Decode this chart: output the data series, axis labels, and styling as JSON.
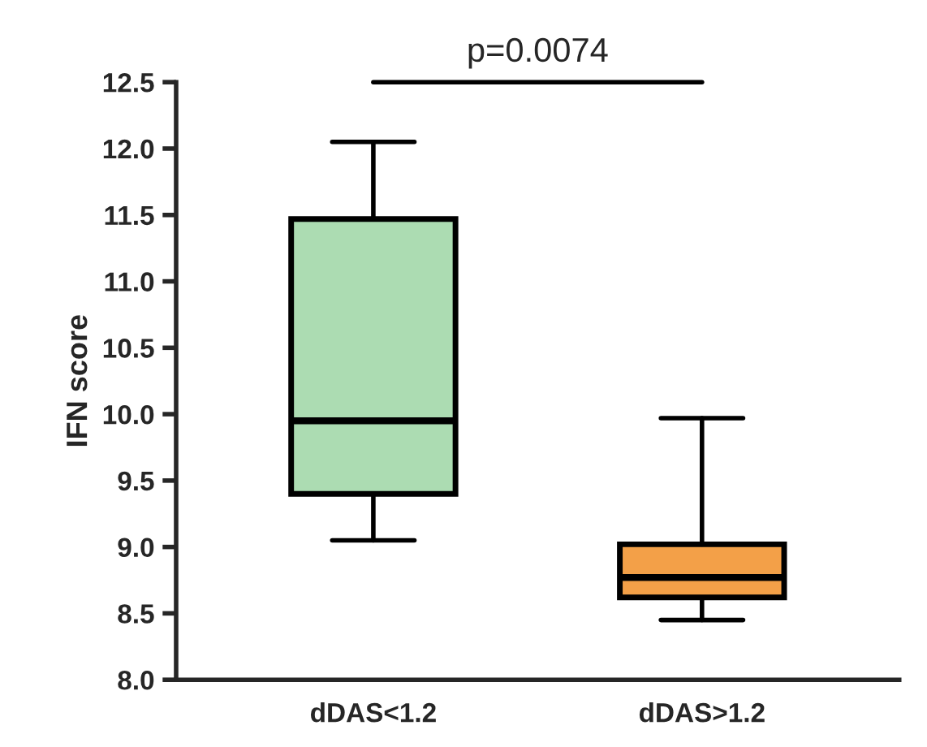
{
  "chart_data": {
    "type": "box",
    "ylabel": "IFN score",
    "categories": [
      "dDAS<1.2",
      "dDAS>1.2"
    ],
    "boxes": [
      {
        "low": 9.05,
        "q1": 9.4,
        "median": 9.95,
        "q3": 11.47,
        "high": 12.05
      },
      {
        "low": 8.45,
        "q1": 8.62,
        "median": 8.77,
        "q3": 9.02,
        "high": 9.97
      }
    ],
    "colors": [
      "#acdcb2",
      "#f3a048"
    ],
    "ylim": [
      8.0,
      12.5
    ],
    "yticks": [
      {
        "value": 8.0,
        "label": "8.0"
      },
      {
        "value": 8.5,
        "label": "8.5"
      },
      {
        "value": 9.0,
        "label": "9.0"
      },
      {
        "value": 9.5,
        "label": "9.5"
      },
      {
        "value": 10.0,
        "label": "10.0"
      },
      {
        "value": 10.5,
        "label": "10.5"
      },
      {
        "value": 11.0,
        "label": "11.0"
      },
      {
        "value": 11.5,
        "label": "11.5"
      },
      {
        "value": 12.0,
        "label": "12.0"
      },
      {
        "value": 12.5,
        "label": "12.5"
      }
    ],
    "annotations": [
      "p=0.0074"
    ],
    "grid": false
  }
}
